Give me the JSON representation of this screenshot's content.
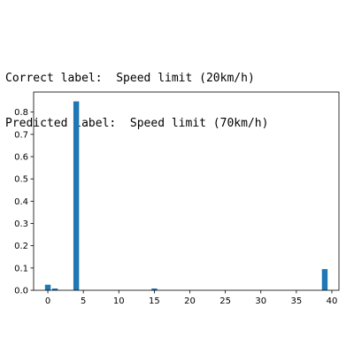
{
  "caption": {
    "correct_prefix": "Correct label:",
    "correct_value": "Speed limit (20km/h)",
    "predicted_prefix": "Predicted label:",
    "predicted_value": "Speed limit (70km/h)"
  },
  "chart_data": {
    "type": "bar",
    "bar_color": "#1f77b4",
    "xlim": [
      -2,
      41
    ],
    "ylim": [
      0,
      0.89
    ],
    "xticks": [
      0,
      5,
      10,
      15,
      20,
      25,
      30,
      35,
      40
    ],
    "yticks": [
      0.0,
      0.1,
      0.2,
      0.3,
      0.4,
      0.5,
      0.6,
      0.7,
      0.8
    ],
    "ytick_labels": [
      "0.0",
      "0.1",
      "0.2",
      "0.3",
      "0.4",
      "0.5",
      "0.6",
      "0.7",
      "0.8"
    ],
    "bars": [
      {
        "x": 0,
        "y": 0.025
      },
      {
        "x": 1,
        "y": 0.008
      },
      {
        "x": 4,
        "y": 0.848
      },
      {
        "x": 15,
        "y": 0.008
      },
      {
        "x": 39,
        "y": 0.095
      }
    ]
  }
}
